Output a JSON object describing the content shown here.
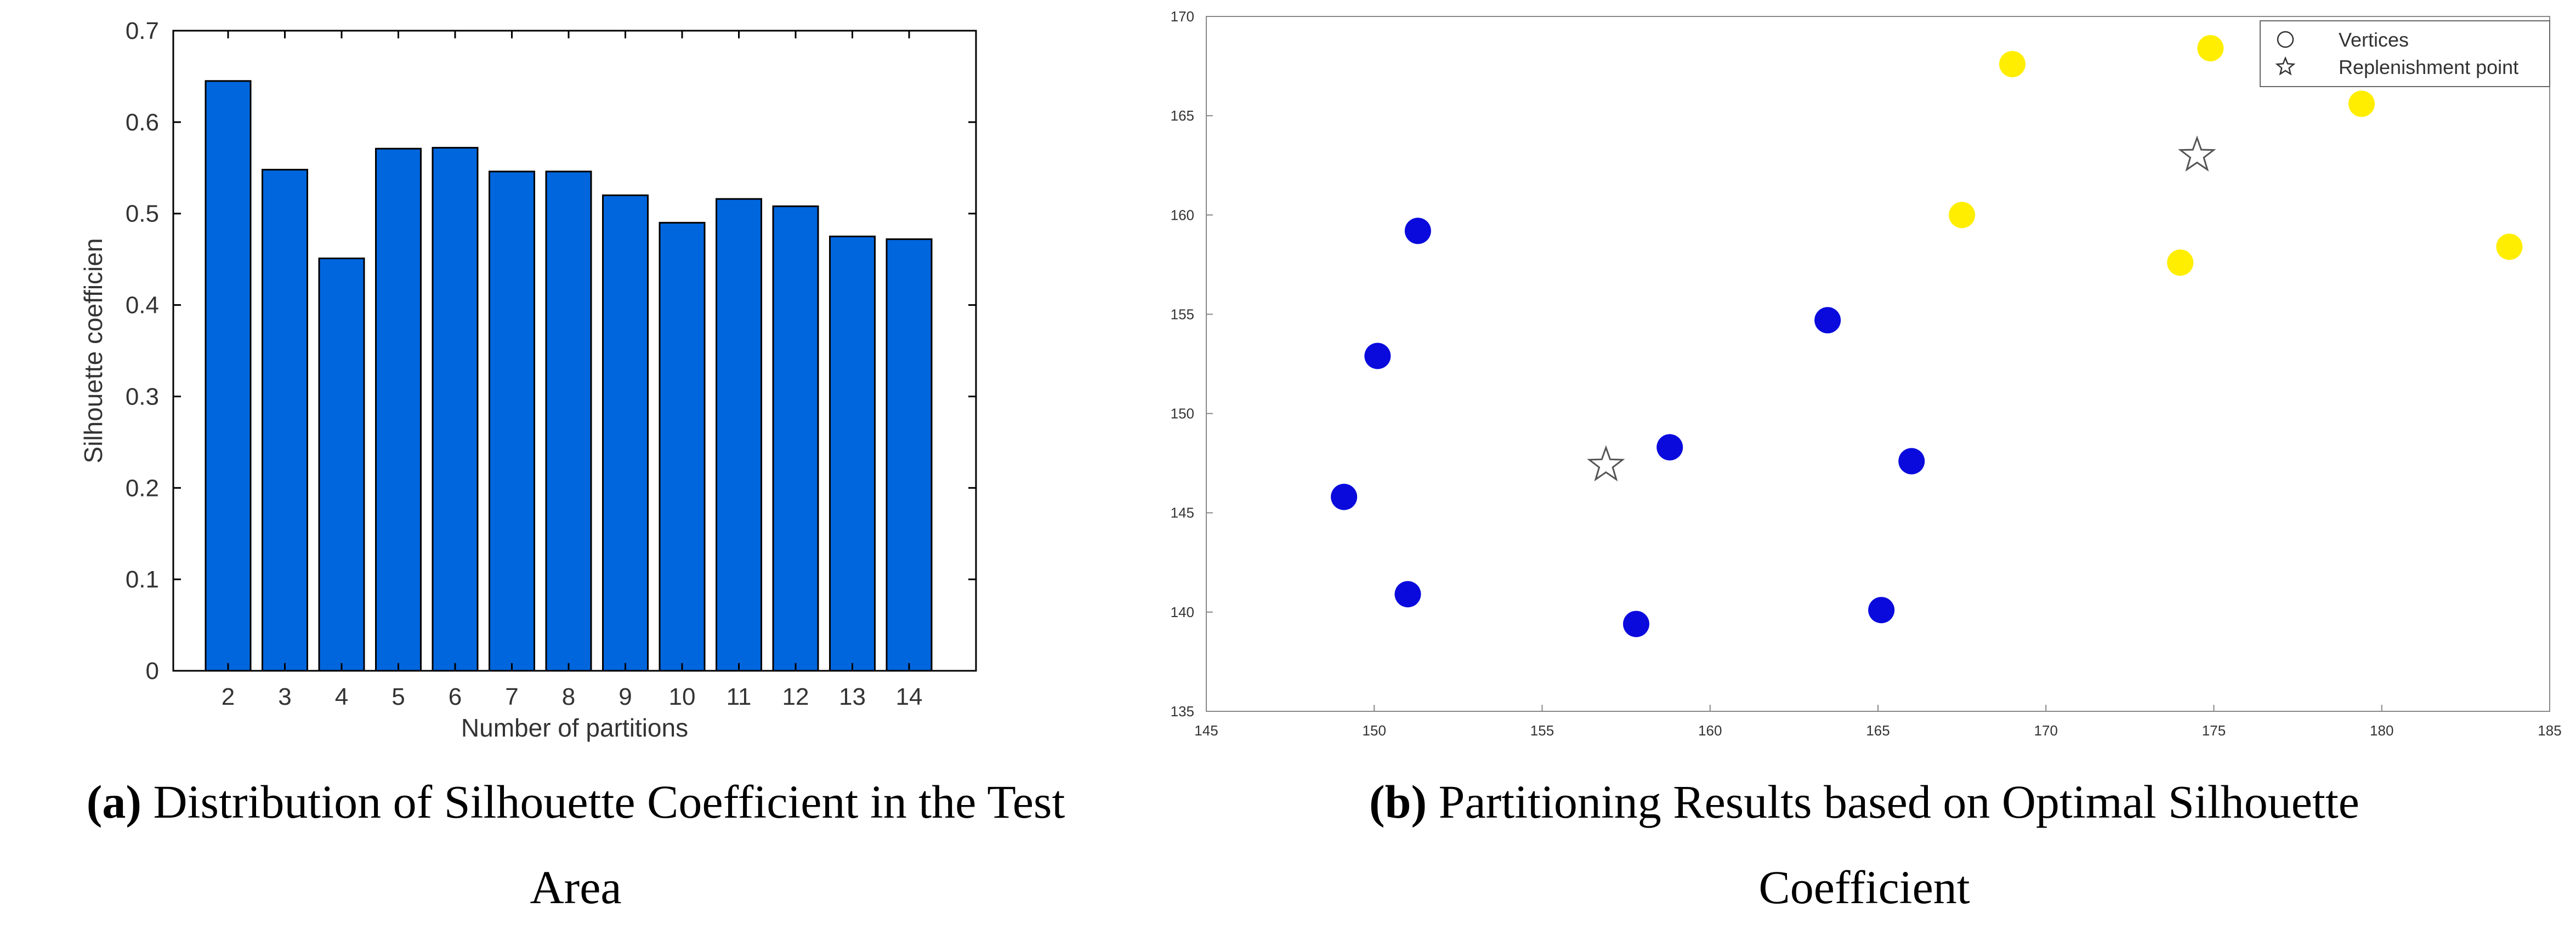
{
  "chart_data": [
    {
      "type": "bar",
      "caption": {
        "tag": "(a)",
        "text": "Distribution of Silhouette Coefficient in the Test",
        "text2": "Area"
      },
      "categories": [
        "2",
        "3",
        "4",
        "5",
        "6",
        "7",
        "8",
        "9",
        "10",
        "11",
        "12",
        "13",
        "14"
      ],
      "values": [
        0.645,
        0.548,
        0.451,
        0.571,
        0.572,
        0.546,
        0.546,
        0.52,
        0.49,
        0.516,
        0.508,
        0.475,
        0.472
      ],
      "xlabel": "Number of partitions",
      "ylabel": "Silhouette coefficien",
      "ylim": [
        0,
        0.7
      ],
      "yticks": [
        "0",
        "0.1",
        "0.2",
        "0.3",
        "0.4",
        "0.5",
        "0.6",
        "0.7"
      ],
      "bar_color": "#0066dd",
      "grid": false
    },
    {
      "type": "scatter",
      "caption": {
        "tag": "(b)",
        "text": "Partitioning Results based on Optimal Silhouette",
        "text2": "Coefficient"
      },
      "xlim": [
        145,
        185
      ],
      "ylim": [
        135,
        170
      ],
      "xticks": [
        "145",
        "150",
        "155",
        "160",
        "165",
        "170",
        "175",
        "180",
        "185"
      ],
      "yticks": [
        "135",
        "140",
        "145",
        "150",
        "155",
        "160",
        "165",
        "170"
      ],
      "legend": {
        "position": "top-right",
        "entries": [
          "Vertices",
          "Replenishment point"
        ]
      },
      "grid": false,
      "series": [
        {
          "color": "#0a0add",
          "marker": "circle",
          "points": [
            [
              151.3,
              159.2
            ],
            [
              150.1,
              152.9
            ],
            [
              149.1,
              145.8
            ],
            [
              151.0,
              140.9
            ],
            [
              157.8,
              139.4
            ],
            [
              158.8,
              148.3
            ],
            [
              163.5,
              154.7
            ],
            [
              166.0,
              147.6
            ],
            [
              165.1,
              140.1
            ]
          ]
        },
        {
          "color": "#ffee00",
          "marker": "circle",
          "points": [
            [
              169.0,
              167.6
            ],
            [
              174.9,
              168.4
            ],
            [
              179.4,
              165.6
            ],
            [
              167.5,
              160.0
            ],
            [
              174.0,
              157.6
            ],
            [
              183.8,
              158.4
            ]
          ]
        },
        {
          "color": "#555555",
          "marker": "star",
          "points": [
            [
              156.9,
              147.4
            ],
            [
              174.5,
              163.0
            ]
          ]
        }
      ]
    }
  ]
}
